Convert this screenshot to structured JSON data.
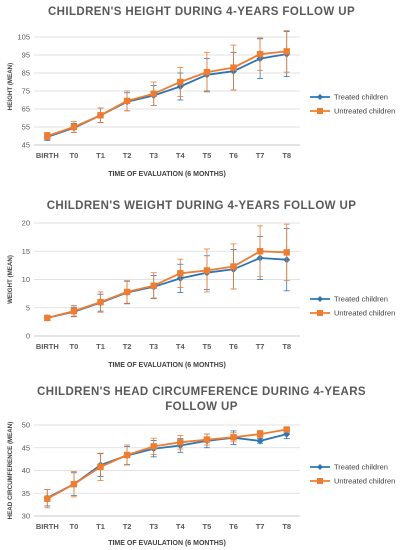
{
  "colors": {
    "treated": "#2e75b6",
    "untreated": "#ed7d31",
    "grid": "#d9d9d9",
    "axis": "#bfbfbf"
  },
  "chart_data": [
    {
      "type": "line",
      "title": "CHILDREN'S HEIGHT DURING 4-YEARS FOLLOW UP",
      "xlabel": "TIME OF EVALUATION (6 MONTHS)",
      "ylabel": "HEIGHT (MEAN)",
      "categories": [
        "BIRTH",
        "T0",
        "T1",
        "T2",
        "T3",
        "T4",
        "T5",
        "T6",
        "T7",
        "T8"
      ],
      "yticks": [
        45,
        55,
        65,
        75,
        85,
        95,
        105
      ],
      "ylim": [
        45,
        110
      ],
      "grid": true,
      "legend_position": "right",
      "series": [
        {
          "name": "Treated children",
          "marker": "diamond",
          "values": [
            49.5,
            54.5,
            61.5,
            69,
            72.5,
            77.5,
            84,
            86,
            93,
            95.5
          ],
          "err": [
            2,
            2.5,
            4,
            5,
            5.5,
            7.5,
            9,
            10.5,
            11,
            12.5
          ]
        },
        {
          "name": "Untreated children",
          "marker": "square",
          "values": [
            50,
            55,
            61.5,
            69.5,
            73.5,
            80,
            85.5,
            88,
            95.5,
            97
          ],
          "err": [
            2,
            3,
            4,
            5.5,
            6.5,
            8,
            11,
            12.5,
            9,
            11.5
          ]
        }
      ]
    },
    {
      "type": "line",
      "title": "CHILDREN'S WEIGHT DURING 4-YEARS FOLLOW UP",
      "xlabel": "TIME OF EVALUATION (6 MONTHS)",
      "ylabel": "WEIGHT (MEAN)",
      "categories": [
        "BIRTH",
        "T0",
        "T1",
        "T2",
        "T3",
        "T4",
        "T5",
        "T6",
        "T7",
        "T8"
      ],
      "yticks": [
        0,
        5,
        10,
        15,
        20
      ],
      "ylim": [
        0,
        20
      ],
      "grid": true,
      "legend_position": "right",
      "series": [
        {
          "name": "Treated children",
          "marker": "diamond",
          "values": [
            3.2,
            4.3,
            5.9,
            7.7,
            8.7,
            10.2,
            11.2,
            11.8,
            13.8,
            13.5
          ],
          "err": [
            0.4,
            0.8,
            1.5,
            2,
            2,
            2.5,
            3,
            3.5,
            3.8,
            5.5
          ]
        },
        {
          "name": "Untreated children",
          "marker": "square",
          "values": [
            3.2,
            4.4,
            6,
            7.8,
            8.9,
            11.1,
            11.6,
            12.3,
            15,
            14.8
          ],
          "err": [
            0.4,
            1,
            1.8,
            2,
            2.3,
            2.5,
            3.8,
            4,
            4.5,
            5
          ]
        }
      ]
    },
    {
      "type": "line",
      "title": "CHILDREN'S HEAD CIRCUMFERENCE DURING 4-YEARS FOLLOW UP",
      "title_lines": [
        "CHILDREN'S HEAD CIRCUMFERENCE DURING 4-YEARS",
        "FOLLOW UP"
      ],
      "xlabel": "TIME OF EVAULATION (6 MONTHS)",
      "ylabel": "HEAD CIRCUMFERENCE (MEAN)",
      "categories": [
        "BIRTH",
        "T0",
        "T1",
        "T2",
        "T3",
        "T4",
        "T5",
        "T6",
        "T7",
        "T8"
      ],
      "yticks": [
        30,
        35,
        40,
        45,
        50
      ],
      "ylim": [
        30,
        50
      ],
      "grid": true,
      "legend_position": "right",
      "series": [
        {
          "name": "Treated children",
          "marker": "diamond",
          "values": [
            34,
            37,
            41.2,
            43.3,
            44.8,
            45.5,
            46.5,
            47.2,
            46.5,
            48
          ],
          "err": [
            1.8,
            2.5,
            2.5,
            2,
            1.8,
            1.5,
            1.5,
            1.5,
            0.5,
            1
          ]
        },
        {
          "name": "Untreated children",
          "marker": "square",
          "values": [
            33.8,
            37,
            40.8,
            43.4,
            45.3,
            46.2,
            46.8,
            47.3,
            48,
            49
          ],
          "err": [
            2,
            2.8,
            3,
            2.2,
            1.8,
            1.5,
            1.2,
            1,
            0.8,
            0.5
          ]
        }
      ]
    }
  ]
}
